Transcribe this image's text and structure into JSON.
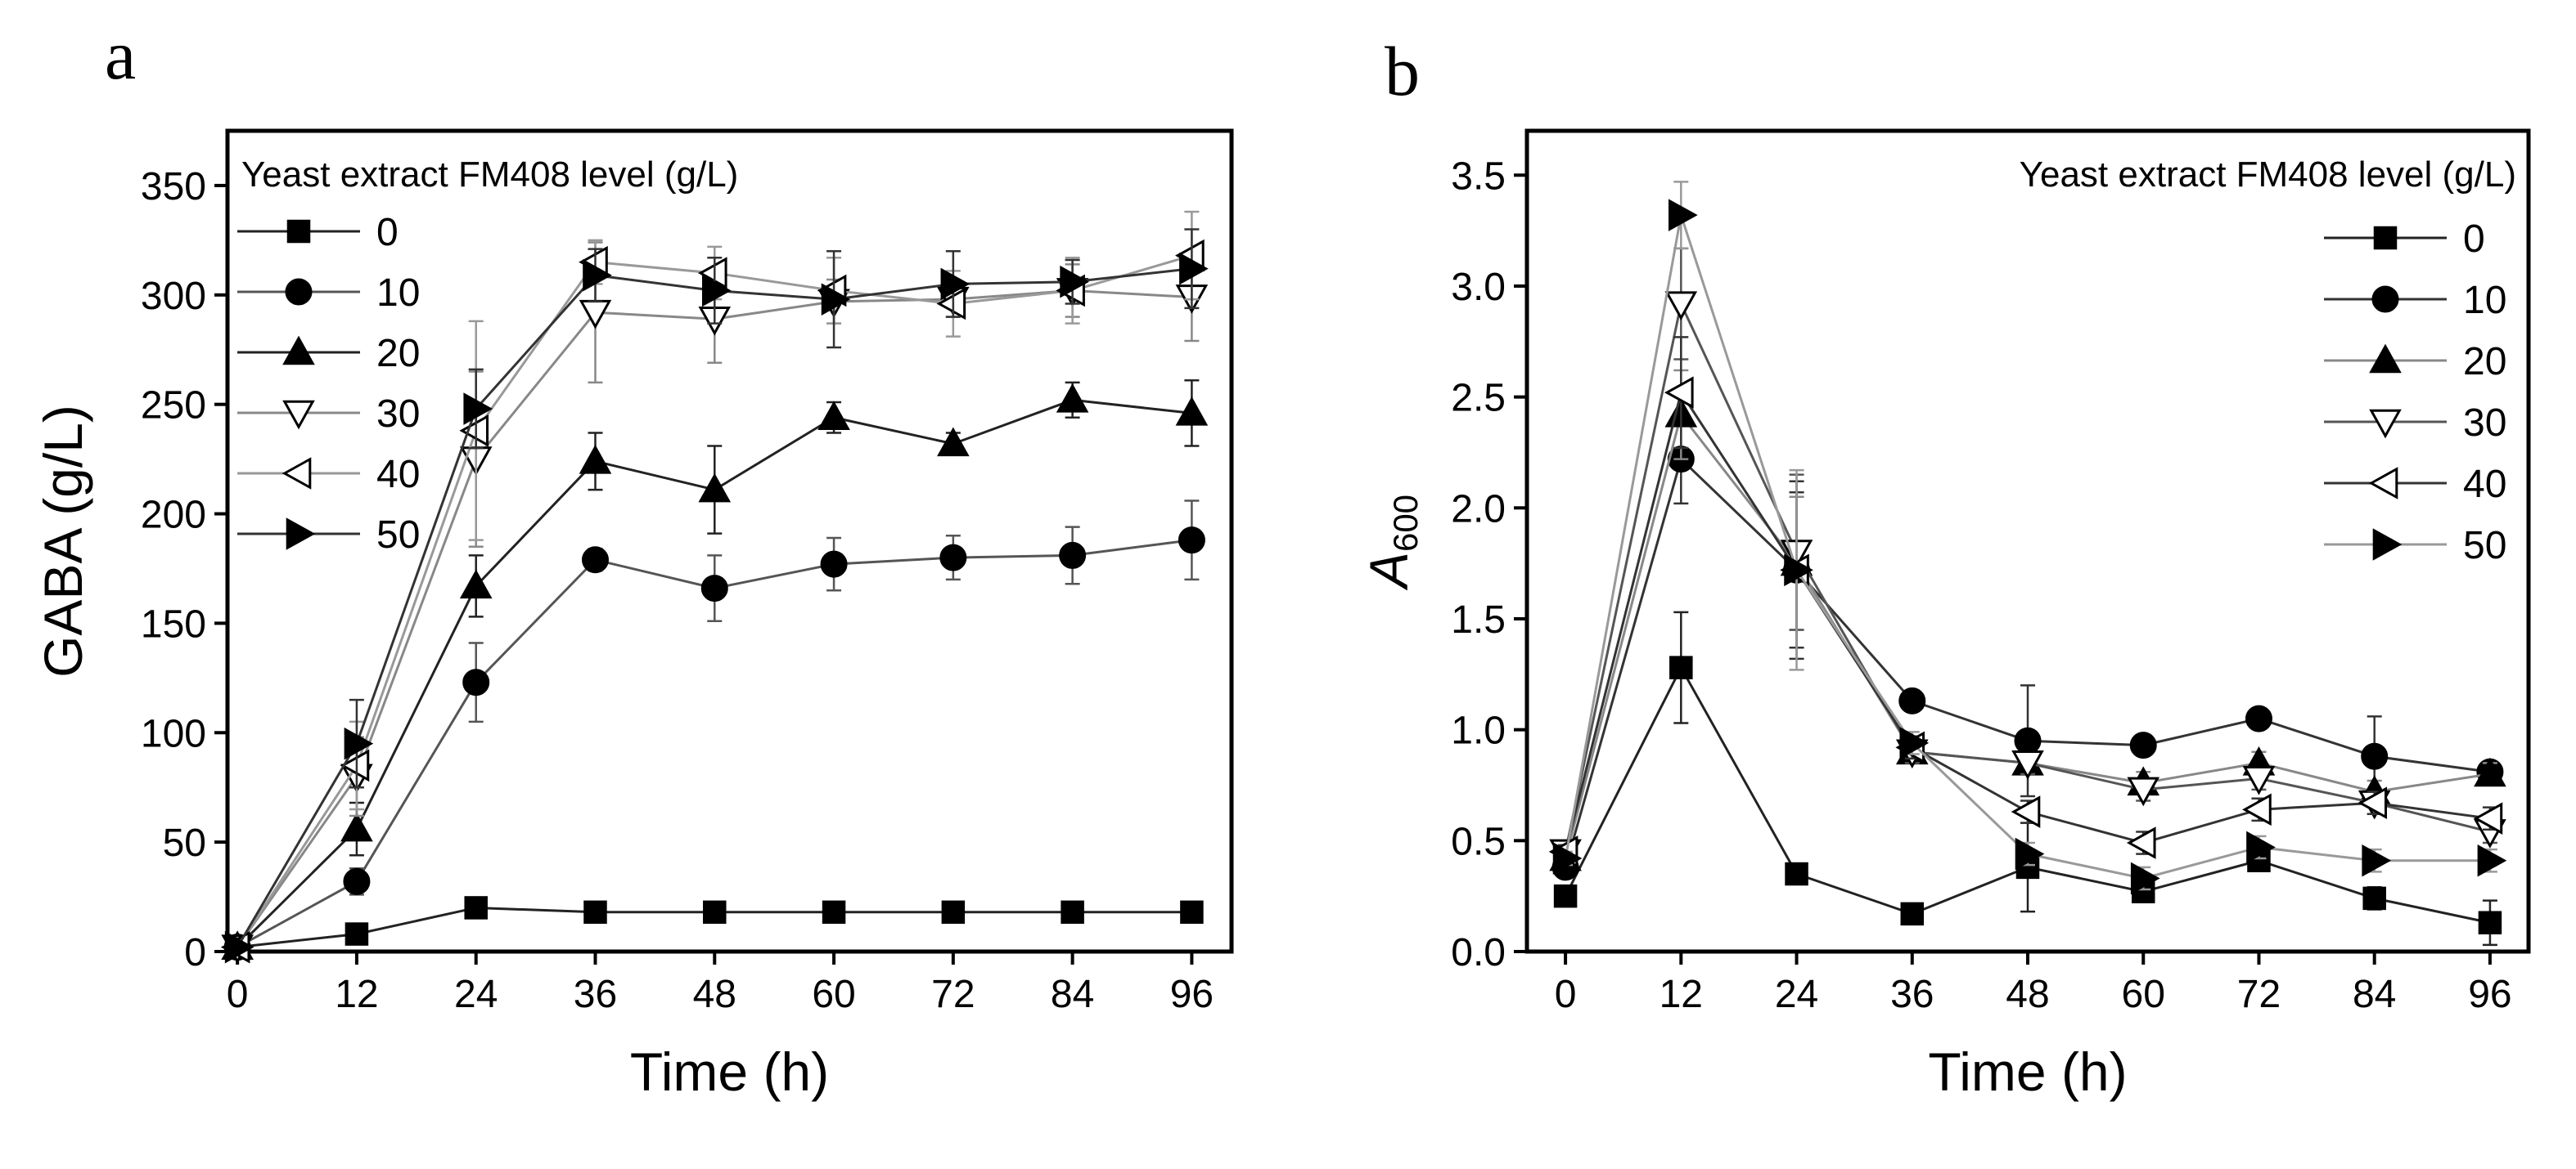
{
  "chart_data": [
    {
      "panel_label": "a",
      "type": "line",
      "xlabel": "Time (h)",
      "ylabel": "GABA (g/L)",
      "ylabel_italic_part": "",
      "ylabel_subscript": "",
      "xlim": [
        -1,
        100
      ],
      "ylim": [
        0,
        375
      ],
      "xticks": [
        0,
        12,
        24,
        36,
        48,
        60,
        72,
        84,
        96
      ],
      "yticks": [
        0,
        50,
        100,
        150,
        200,
        250,
        300,
        350
      ],
      "legend_title": "Yeast extract FM408 level (g/L)",
      "legend_position": "top-left",
      "x": [
        0,
        12,
        24,
        36,
        48,
        60,
        72,
        84,
        96
      ],
      "series": [
        {
          "name": "0",
          "marker": "square",
          "line_color": "#222222",
          "values": [
            2,
            8,
            20,
            18,
            18,
            18,
            18,
            18,
            18
          ],
          "errors": [
            0,
            2,
            3,
            2,
            2,
            2,
            2,
            2,
            2
          ]
        },
        {
          "name": "10",
          "marker": "circle",
          "line_color": "#555555",
          "values": [
            2,
            32,
            123,
            179,
            166,
            177,
            180,
            181,
            188
          ],
          "errors": [
            0,
            6,
            18,
            5,
            15,
            12,
            10,
            13,
            18
          ]
        },
        {
          "name": "20",
          "marker": "triangle-up",
          "line_color": "#222222",
          "values": [
            2,
            56,
            167,
            224,
            211,
            244,
            232,
            252,
            246
          ],
          "errors": [
            0,
            12,
            14,
            13,
            20,
            7,
            5,
            8,
            15
          ]
        },
        {
          "name": "30",
          "marker": "triangle-down",
          "line_color": "#888888",
          "values": [
            2,
            80,
            225,
            292,
            289,
            297,
            298,
            302,
            299
          ],
          "errors": [
            0,
            18,
            40,
            32,
            20,
            10,
            8,
            12,
            20
          ]
        },
        {
          "name": "40",
          "marker": "triangle-left",
          "line_color": "#999999",
          "values": [
            2,
            85,
            238,
            315,
            310,
            302,
            296,
            302,
            318
          ],
          "errors": [
            0,
            20,
            50,
            10,
            12,
            15,
            15,
            15,
            20
          ]
        },
        {
          "name": "50",
          "marker": "triangle-right",
          "line_color": "#333333",
          "values": [
            2,
            95,
            248,
            309,
            302,
            298,
            305,
            306,
            312
          ],
          "errors": [
            0,
            20,
            18,
            12,
            15,
            22,
            15,
            10,
            18
          ]
        }
      ]
    },
    {
      "panel_label": "b",
      "type": "line",
      "xlabel": "Time (h)",
      "ylabel": "",
      "ylabel_italic_part": "A",
      "ylabel_subscript": "600",
      "xlim": [
        -4,
        100
      ],
      "ylim": [
        0,
        3.7
      ],
      "xticks": [
        0,
        12,
        24,
        36,
        48,
        60,
        72,
        84,
        96
      ],
      "yticks": [
        0.0,
        0.5,
        1.0,
        1.5,
        2.0,
        2.5,
        3.0,
        3.5
      ],
      "legend_title": "Yeast extract FM408 level (g/L)",
      "legend_position": "top-right",
      "x": [
        0,
        12,
        24,
        36,
        48,
        60,
        72,
        84,
        96
      ],
      "series": [
        {
          "name": "0",
          "marker": "square",
          "line_color": "#222222",
          "values": [
            0.25,
            1.28,
            0.35,
            0.17,
            0.38,
            0.27,
            0.41,
            0.24,
            0.13
          ],
          "errors": [
            0.02,
            0.25,
            0.02,
            0.02,
            0.2,
            0.04,
            0.04,
            0.05,
            0.1
          ]
        },
        {
          "name": "10",
          "marker": "circle",
          "line_color": "#333333",
          "values": [
            0.38,
            2.22,
            1.72,
            1.13,
            0.95,
            0.93,
            1.05,
            0.88,
            0.81
          ],
          "errors": [
            0.03,
            0.2,
            0.35,
            0.04,
            0.25,
            0.04,
            0.04,
            0.18,
            0.04
          ]
        },
        {
          "name": "20",
          "marker": "triangle-up",
          "line_color": "#888888",
          "values": [
            0.42,
            2.42,
            1.75,
            0.9,
            0.85,
            0.76,
            0.85,
            0.72,
            0.8
          ],
          "errors": [
            0.03,
            0.2,
            0.3,
            0.05,
            0.05,
            0.05,
            0.05,
            0.05,
            0.05
          ]
        },
        {
          "name": "30",
          "marker": "triangle-down",
          "line_color": "#555555",
          "values": [
            0.45,
            2.92,
            1.8,
            0.9,
            0.85,
            0.73,
            0.78,
            0.67,
            0.54
          ],
          "errors": [
            0.03,
            0.25,
            0.35,
            0.05,
            0.05,
            0.05,
            0.05,
            0.05,
            0.05
          ]
        },
        {
          "name": "40",
          "marker": "triangle-left",
          "line_color": "#333333",
          "values": [
            0.45,
            2.52,
            1.72,
            0.92,
            0.63,
            0.49,
            0.64,
            0.67,
            0.6
          ],
          "errors": [
            0.03,
            0.25,
            0.4,
            0.05,
            0.05,
            0.05,
            0.05,
            0.05,
            0.05
          ]
        },
        {
          "name": "50",
          "marker": "triangle-right",
          "line_color": "#999999",
          "values": [
            0.42,
            3.32,
            1.72,
            0.94,
            0.44,
            0.33,
            0.47,
            0.41,
            0.41
          ],
          "errors": [
            0.03,
            0.15,
            0.45,
            0.05,
            0.05,
            0.05,
            0.05,
            0.05,
            0.05
          ]
        }
      ]
    }
  ]
}
